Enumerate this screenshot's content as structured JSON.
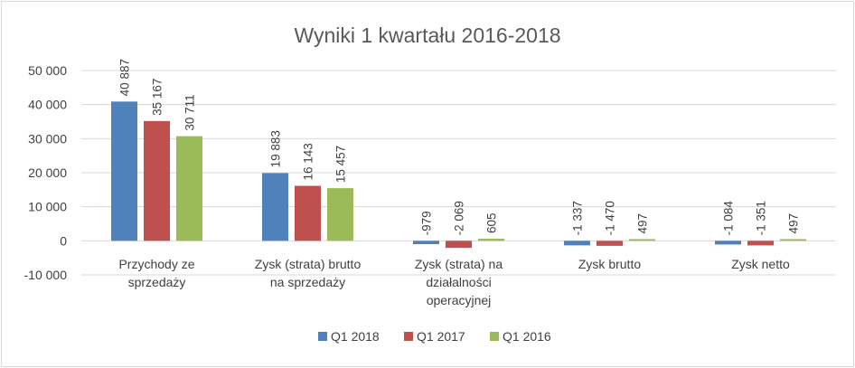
{
  "chart_data": {
    "type": "bar",
    "title": "Wyniki 1 kwartału 2016-2018",
    "categories": [
      [
        "Przychody ze",
        "sprzedaży"
      ],
      [
        "Zysk (strata) brutto",
        "na sprzedaży"
      ],
      [
        "Zysk (strata) na",
        "działalności",
        "operacyjnej"
      ],
      [
        "Zysk brutto"
      ],
      [
        "Zysk netto"
      ]
    ],
    "series": [
      {
        "name": "Q1 2018",
        "color": "#4f81bd",
        "values": [
          40887,
          19883,
          -979,
          -1337,
          -1084
        ],
        "labels": [
          "40 887",
          "19 883",
          "-979",
          "-1 337",
          "-1 084"
        ]
      },
      {
        "name": "Q1 2017",
        "color": "#c0504d",
        "values": [
          35167,
          16143,
          -2069,
          -1470,
          -1351
        ],
        "labels": [
          "35 167",
          "16 143",
          "-2 069",
          "-1 470",
          "-1 351"
        ]
      },
      {
        "name": "Q1 2016",
        "color": "#9bbb59",
        "values": [
          30711,
          15457,
          605,
          497,
          497
        ],
        "labels": [
          "30 711",
          "15 457",
          "605",
          "497",
          "497"
        ]
      }
    ],
    "yticks": [
      50000,
      40000,
      30000,
      20000,
      10000,
      0,
      -10000
    ],
    "ytick_labels": [
      "50 000",
      "40 000",
      "30 000",
      "20 000",
      "10 000",
      "0",
      "-10 000"
    ],
    "ylim": [
      -10000,
      50000
    ],
    "grid": true,
    "legend_position": "bottom"
  }
}
